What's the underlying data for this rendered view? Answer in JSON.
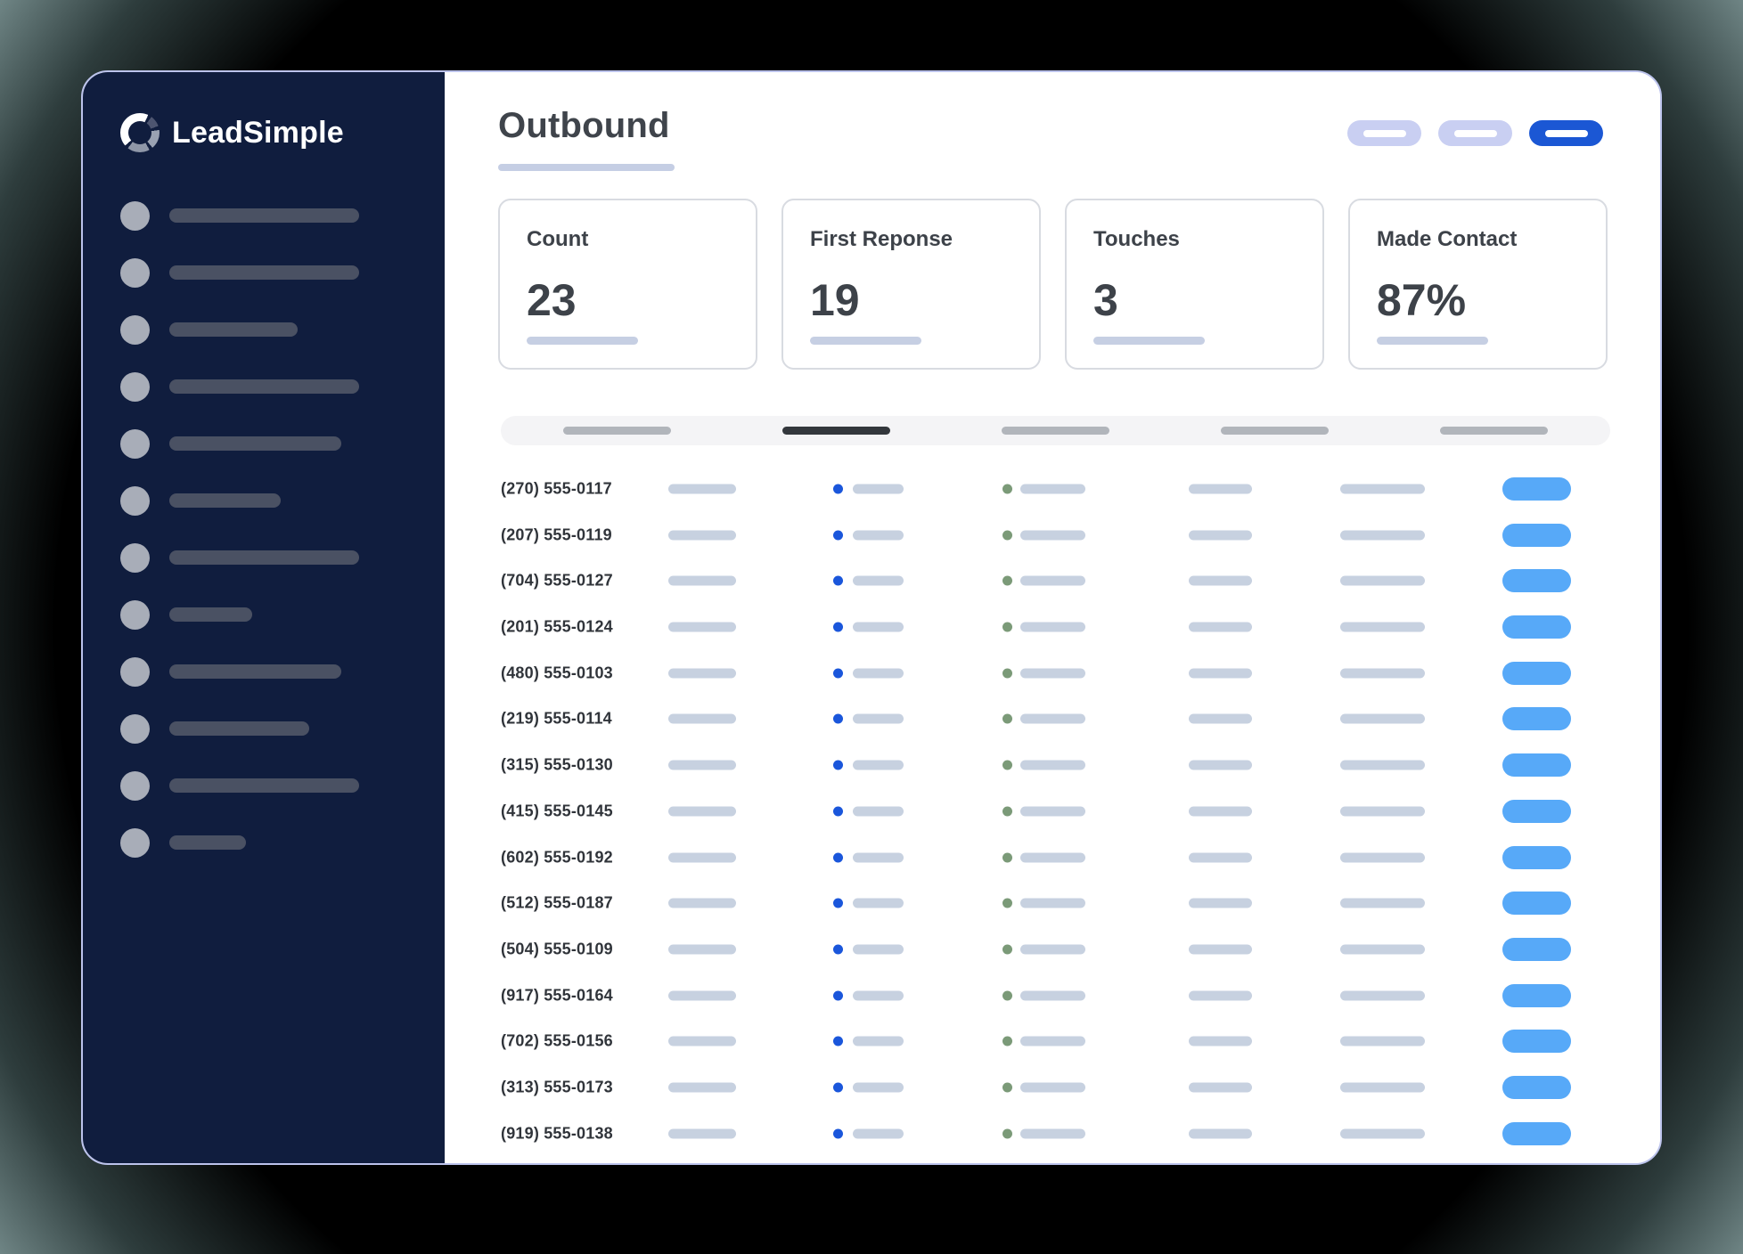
{
  "app": {
    "brand": "LeadSimple"
  },
  "sidebar": {
    "nav_items": [
      {
        "placeholder_width": 213
      },
      {
        "placeholder_width": 213
      },
      {
        "placeholder_width": 144
      },
      {
        "placeholder_width": 213
      },
      {
        "placeholder_width": 193
      },
      {
        "placeholder_width": 125
      },
      {
        "placeholder_width": 213
      },
      {
        "placeholder_width": 93
      },
      {
        "placeholder_width": 193
      },
      {
        "placeholder_width": 157
      },
      {
        "placeholder_width": 213
      },
      {
        "placeholder_width": 86
      }
    ]
  },
  "header": {
    "title": "Outbound",
    "pills": [
      {
        "state": "inactive"
      },
      {
        "state": "inactive"
      },
      {
        "state": "active"
      }
    ]
  },
  "stats": [
    {
      "label": "Count",
      "value": "23"
    },
    {
      "label": "First Reponse",
      "value": "19"
    },
    {
      "label": "Touches",
      "value": "3"
    },
    {
      "label": "Made Contact",
      "value": "87%"
    }
  ],
  "table": {
    "header_placeholders": [
      "gray",
      "dark",
      "gray",
      "gray",
      "gray"
    ],
    "rows": [
      {
        "phone": "(270) 555-0117"
      },
      {
        "phone": "(207) 555-0119"
      },
      {
        "phone": "(704) 555-0127"
      },
      {
        "phone": "(201) 555-0124"
      },
      {
        "phone": "(480) 555-0103"
      },
      {
        "phone": "(219) 555-0114"
      },
      {
        "phone": "(315) 555-0130"
      },
      {
        "phone": "(415) 555-0145"
      },
      {
        "phone": "(602) 555-0192"
      },
      {
        "phone": "(512) 555-0187"
      },
      {
        "phone": "(504) 555-0109"
      },
      {
        "phone": "(917) 555-0164"
      },
      {
        "phone": "(702) 555-0156"
      },
      {
        "phone": "(313) 555-0173"
      },
      {
        "phone": "(919) 555-0138"
      }
    ]
  },
  "colors": {
    "sidebar_navy": "#101d3e",
    "accent_blue": "#1b57d4",
    "row_action_blue": "#57a9f8",
    "blue_dot": "#1a56db",
    "green_dot": "#7b9a78",
    "lavender_pill": "#c9cff2",
    "placeholder_blue_gray": "#c7d1e0"
  }
}
